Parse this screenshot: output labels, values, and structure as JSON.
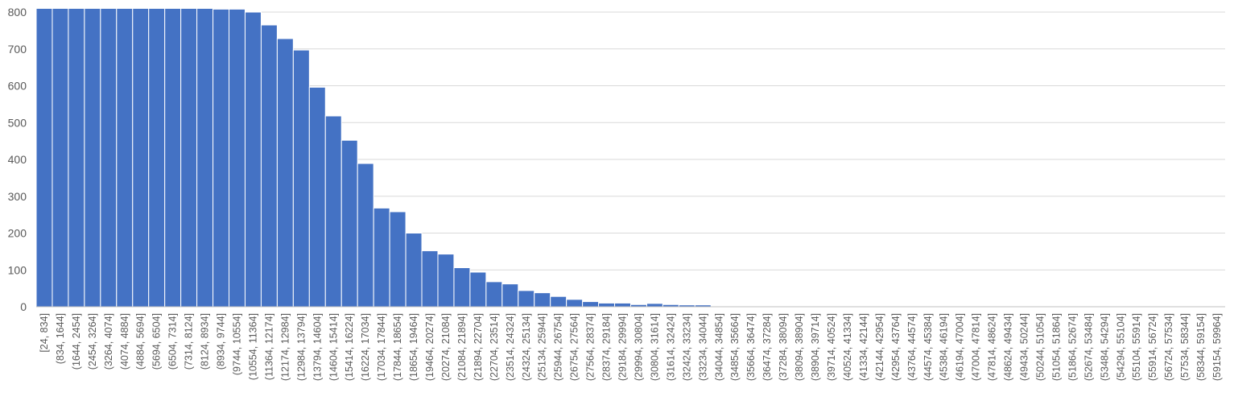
{
  "chart_data": {
    "type": "bar",
    "title": "",
    "xlabel": "",
    "ylabel": "",
    "ylim": [
      0,
      800
    ],
    "yticks": [
      0,
      100,
      200,
      300,
      400,
      500,
      600,
      700,
      800
    ],
    "grid": true,
    "legend": "none",
    "bar_color": "#4472C4",
    "categories": [
      "[24, 834]",
      "(834, 1644]",
      "(1644, 2454]",
      "(2454, 3264]",
      "(3264, 4074]",
      "(4074, 4884]",
      "(4884, 5694]",
      "(5694, 6504]",
      "(6504, 7314]",
      "(7314, 8124]",
      "(8124, 8934]",
      "(8934, 9744]",
      "(9744, 10554]",
      "(10554, 11364]",
      "(11364, 12174]",
      "(12174, 12984]",
      "(12984, 13794]",
      "(13794, 14604]",
      "(14604, 15414]",
      "(15414, 16224]",
      "(16224, 17034]",
      "(17034, 17844]",
      "(17844, 18654]",
      "(18654, 19464]",
      "(19464, 20274]",
      "(20274, 21084]",
      "(21084, 21894]",
      "(21894, 22704]",
      "(22704, 23514]",
      "(23514, 24324]",
      "(24324, 25134]",
      "(25134, 25944]",
      "(25944, 26754]",
      "(26754, 27564]",
      "(27564, 28374]",
      "(28374, 29184]",
      "(29184, 29994]",
      "(29994, 30804]",
      "(30804, 31614]",
      "(31614, 32424]",
      "(32424, 33234]",
      "(33234, 34044]",
      "(34044, 34854]",
      "(34854, 35664]",
      "(35664, 36474]",
      "(36474, 37284]",
      "(37284, 38094]",
      "(38094, 38904]",
      "(38904, 39714]",
      "(39714, 40524]",
      "(40524, 41334]",
      "(41334, 42144]",
      "(42144, 42954]",
      "(42954, 43764]",
      "(43764, 44574]",
      "(44574, 45384]",
      "(45384, 46194]",
      "(46194, 47004]",
      "(47004, 47814]",
      "(47814, 48624]",
      "(48624, 49434]",
      "(49434, 50244]",
      "(50244, 51054]",
      "(51054, 51864]",
      "(51864, 52674]",
      "(52674, 53484]",
      "(53484, 54294]",
      "(54294, 55104]",
      "(55104, 55914]",
      "(55914, 56724]",
      "(56724, 57534]",
      "(57534, 58344]",
      "(58344, 59154]",
      "(59154, 59964]"
    ],
    "values": [
      810,
      810,
      810,
      810,
      810,
      810,
      810,
      810,
      810,
      810,
      810,
      808,
      808,
      800,
      765,
      728,
      697,
      596,
      518,
      452,
      389,
      268,
      258,
      200,
      152,
      143,
      106,
      94,
      68,
      62,
      44,
      38,
      28,
      20,
      14,
      10,
      10,
      6,
      9,
      6,
      5,
      5,
      0,
      0,
      0,
      0,
      0,
      0,
      0,
      0,
      0,
      0,
      0,
      0,
      0,
      0,
      0,
      0,
      0,
      0,
      0,
      0,
      0,
      0,
      0,
      0,
      0,
      0,
      0,
      0,
      0,
      0,
      0,
      0
    ]
  }
}
